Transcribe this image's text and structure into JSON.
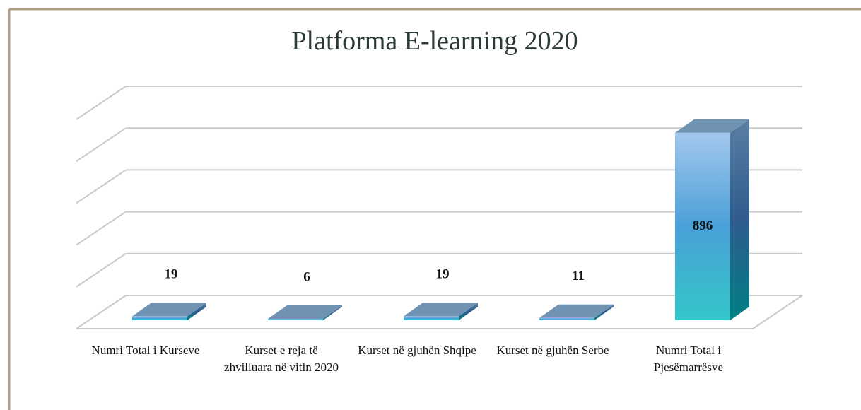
{
  "chart_data": {
    "type": "bar3d",
    "title": "Platforma E-learning 2020",
    "categories": [
      "Numri Total i Kurseve",
      "Kurset e reja të zhvilluara në vitin 2020",
      "Kurset në gjuhën Shqipe",
      "Kurset në gjuhën Serbe",
      "Numri Total i Pjesëmarrësve"
    ],
    "values": [
      19,
      6,
      19,
      11,
      896
    ],
    "ylim": [
      0,
      1000
    ],
    "yticks": [
      0,
      200,
      400,
      600,
      800,
      1000
    ],
    "grid": true
  }
}
